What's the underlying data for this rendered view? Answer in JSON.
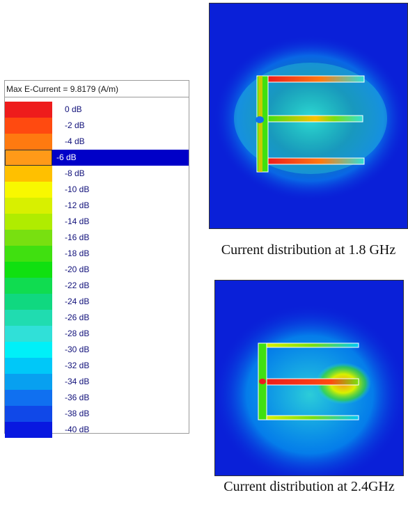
{
  "legend": {
    "title": "Max E-Current = 9.8179 (A/m)",
    "items": [
      {
        "label": "0 dB",
        "color": "#ee1c1c"
      },
      {
        "label": "-2 dB",
        "color": "#ff4a10"
      },
      {
        "label": "-4 dB",
        "color": "#ff7a10"
      },
      {
        "label": "-6 dB",
        "color": "#ff9a18"
      },
      {
        "label": "-8 dB",
        "color": "#ffc000"
      },
      {
        "label": "-10 dB",
        "color": "#f8f800"
      },
      {
        "label": "-12 dB",
        "color": "#d8f000"
      },
      {
        "label": "-14 dB",
        "color": "#b0ec00"
      },
      {
        "label": "-16 dB",
        "color": "#78e010"
      },
      {
        "label": "-18 dB",
        "color": "#40e010"
      },
      {
        "label": "-20 dB",
        "color": "#10e010"
      },
      {
        "label": "-22 dB",
        "color": "#10dc50"
      },
      {
        "label": "-24 dB",
        "color": "#10d880"
      },
      {
        "label": "-26 dB",
        "color": "#20dcb0"
      },
      {
        "label": "-28 dB",
        "color": "#30e0d8"
      },
      {
        "label": "-30 dB",
        "color": "#00f0f8"
      },
      {
        "label": "-32 dB",
        "color": "#00c8f8"
      },
      {
        "label": "-34 dB",
        "color": "#08a0f0"
      },
      {
        "label": "-36 dB",
        "color": "#1070f0"
      },
      {
        "label": "-38 dB",
        "color": "#1048e8"
      },
      {
        "label": "-40 dB",
        "color": "#0818e0"
      }
    ],
    "selected_index": 3,
    "selection_color": "#0000c8"
  },
  "plots": [
    {
      "caption": "Current distribution at 1.8 GHz"
    },
    {
      "caption": "Current distribution at 2.4GHz"
    }
  ]
}
